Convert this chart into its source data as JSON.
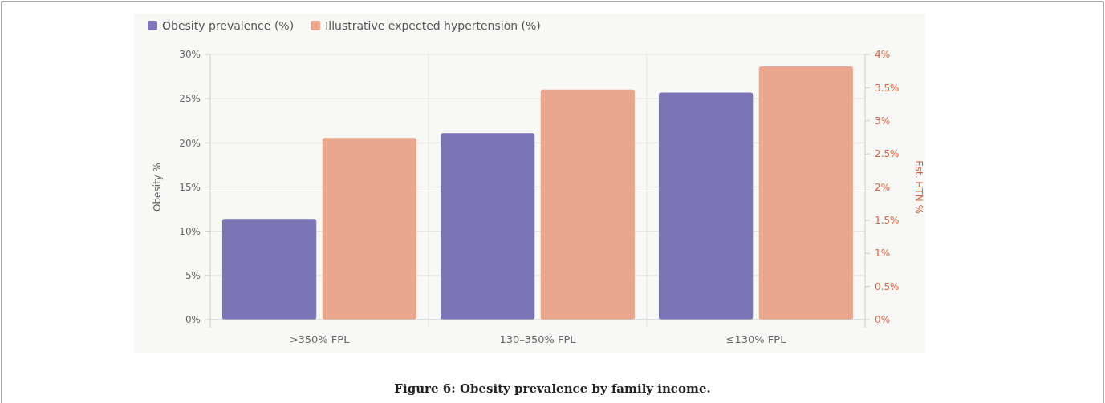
{
  "chart_data": {
    "type": "bar",
    "categories": [
      ">350% FPL",
      "130–350% FPL",
      "≤130% FPL"
    ],
    "series": [
      {
        "name": "Obesity prevalence (%)",
        "color": "#7b74b7",
        "values": [
          11.4,
          21.1,
          25.7
        ]
      },
      {
        "name": "Illustrative expected hypertension (%)",
        "color": "#e8a78e",
        "values": [
          2.74,
          3.47,
          3.82
        ],
        "axis": "y2"
      }
    ],
    "ylabel": "Obesity %",
    "y2label": "Est. HTN %",
    "ylim": [
      0,
      30
    ],
    "yticks": [
      {
        "value": 0,
        "label": "0%"
      },
      {
        "value": 5,
        "label": "5%"
      },
      {
        "value": 10,
        "label": "10%"
      },
      {
        "value": 15,
        "label": "15%"
      },
      {
        "value": 20,
        "label": "20%"
      },
      {
        "value": 25,
        "label": "25%"
      },
      {
        "value": 30,
        "label": "30%"
      }
    ],
    "y2lim": [
      0,
      4
    ],
    "y2ticks": [
      {
        "value": 0,
        "label": "0%"
      },
      {
        "value": 0.5,
        "label": "0.5%"
      },
      {
        "value": 1,
        "label": "1%"
      },
      {
        "value": 1.5,
        "label": "1.5%"
      },
      {
        "value": 2,
        "label": "2%"
      },
      {
        "value": 2.5,
        "label": "2.5%"
      },
      {
        "value": 3,
        "label": "3%"
      },
      {
        "value": 3.5,
        "label": "3.5%"
      },
      {
        "value": 4,
        "label": "4%"
      }
    ],
    "grid": true,
    "legend": "top left",
    "annotations": [
      "Figure 6: Obesity prevalence by family income."
    ]
  }
}
